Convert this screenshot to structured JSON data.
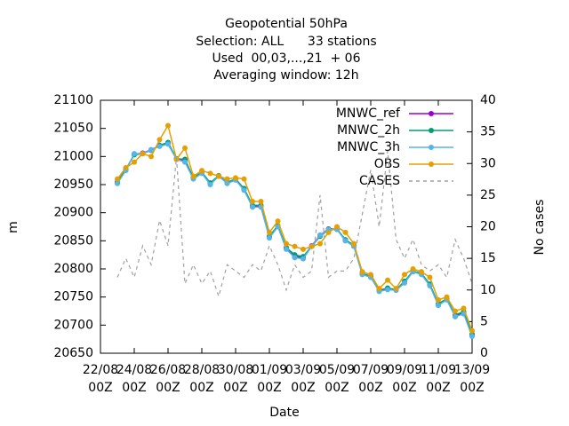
{
  "chart_data": {
    "type": "line",
    "title": [
      "Geopotential 50hPa",
      "Selection: ALL      33 stations",
      "Used  00,03,...,21  + 06",
      "Averaging window: 12h"
    ],
    "x_label": "Date",
    "y_label": "m",
    "y2_label": "No cases",
    "x": [
      1,
      1.5,
      2,
      2.5,
      3,
      3.5,
      4,
      4.5,
      5,
      5.5,
      6,
      6.5,
      7,
      7.5,
      8,
      8.5,
      9,
      9.5,
      10,
      10.5,
      11,
      11.5,
      12,
      12.5,
      13,
      13.5,
      14,
      14.5,
      15,
      15.5,
      16,
      16.5,
      17,
      17.5,
      18,
      18.5,
      19,
      19.5,
      20,
      20.5,
      21,
      21.5,
      22
    ],
    "xlim": [
      0,
      22
    ],
    "xticks": [
      {
        "value": 0,
        "label": [
          "22/08",
          "00Z"
        ]
      },
      {
        "value": 2,
        "label": [
          "24/08",
          "00Z"
        ]
      },
      {
        "value": 4,
        "label": [
          "26/08",
          "00Z"
        ]
      },
      {
        "value": 6,
        "label": [
          "28/08",
          "00Z"
        ]
      },
      {
        "value": 8,
        "label": [
          "30/08",
          "00Z"
        ]
      },
      {
        "value": 10,
        "label": [
          "01/09",
          "00Z"
        ]
      },
      {
        "value": 12,
        "label": [
          "03/09",
          "00Z"
        ]
      },
      {
        "value": 14,
        "label": [
          "05/09",
          "00Z"
        ]
      },
      {
        "value": 16,
        "label": [
          "07/09",
          "00Z"
        ]
      },
      {
        "value": 18,
        "label": [
          "09/09",
          "00Z"
        ]
      },
      {
        "value": 20,
        "label": [
          "11/09",
          "00Z"
        ]
      },
      {
        "value": 22,
        "label": [
          "13/09",
          "00Z"
        ]
      }
    ],
    "ylim": [
      20650,
      21100
    ],
    "yticks": [
      20650,
      20700,
      20750,
      20800,
      20850,
      20900,
      20950,
      21000,
      21050,
      21100
    ],
    "y2lim": [
      0,
      40
    ],
    "y2ticks": [
      0,
      5,
      10,
      15,
      20,
      25,
      30,
      35,
      40
    ],
    "legend": "top-right",
    "series": [
      {
        "name": "MNWC_ref",
        "color": "#9400d3",
        "values": [
          20953,
          20976,
          21004,
          21006,
          21012,
          21019,
          21023,
          20996,
          20993,
          20961,
          20971,
          20951,
          20965,
          20953,
          20959,
          20941,
          20911,
          20911,
          20857,
          20876,
          20836,
          20822,
          20820,
          20841,
          20860,
          20871,
          20871,
          20851,
          20841,
          20791,
          20786,
          20761,
          20764,
          20763,
          20776,
          20795,
          20791,
          20771,
          20736,
          20746,
          20716,
          20722,
          20682
        ]
      },
      {
        "name": "MNWC_2h",
        "color": "#009e73",
        "values": [
          20955,
          20977,
          21003,
          21005,
          21011,
          21020,
          21025,
          20996,
          20995,
          20962,
          20972,
          20953,
          20966,
          20954,
          20960,
          20943,
          20913,
          20913,
          20858,
          20877,
          20838,
          20825,
          20822,
          20840,
          20858,
          20870,
          20871,
          20852,
          20842,
          20792,
          20787,
          20762,
          20766,
          20763,
          20778,
          20796,
          20792,
          20773,
          20738,
          20747,
          20718,
          20724,
          20684
        ]
      },
      {
        "name": "MNWC_3h",
        "color": "#56b4e9",
        "values": [
          20952,
          20975,
          21005,
          21005,
          21012,
          21018,
          21022,
          20995,
          20990,
          20960,
          20970,
          20950,
          20965,
          20952,
          20958,
          20940,
          20910,
          20910,
          20855,
          20875,
          20835,
          20820,
          20818,
          20840,
          20860,
          20870,
          20870,
          20850,
          20840,
          20790,
          20785,
          20760,
          20763,
          20762,
          20775,
          20795,
          20790,
          20770,
          20735,
          20745,
          20715,
          20720,
          20680
        ]
      },
      {
        "name": "OBS",
        "color": "#e69f00",
        "values": [
          20960,
          20980,
          20990,
          21005,
          21000,
          21030,
          21055,
          20995,
          21015,
          20965,
          20975,
          20970,
          20965,
          20960,
          20962,
          20960,
          20920,
          20920,
          20865,
          20885,
          20845,
          20840,
          20835,
          20840,
          20845,
          20865,
          20875,
          20865,
          20845,
          20795,
          20790,
          20765,
          20780,
          20765,
          20790,
          20800,
          20795,
          20785,
          20745,
          20750,
          20725,
          20730,
          20690
        ]
      },
      {
        "name": "CASES",
        "color": "#a0a0a0",
        "axis": "y2",
        "dashed": true,
        "values": [
          12,
          15,
          12,
          17,
          14,
          21,
          17,
          31,
          11,
          14,
          11,
          13,
          9,
          14,
          13,
          12,
          14,
          13,
          17,
          14,
          10,
          14,
          12,
          13,
          25,
          12,
          13,
          13,
          15,
          22,
          29,
          20,
          32,
          18,
          15,
          18,
          14,
          13,
          14,
          12,
          18,
          15,
          11
        ]
      }
    ]
  }
}
